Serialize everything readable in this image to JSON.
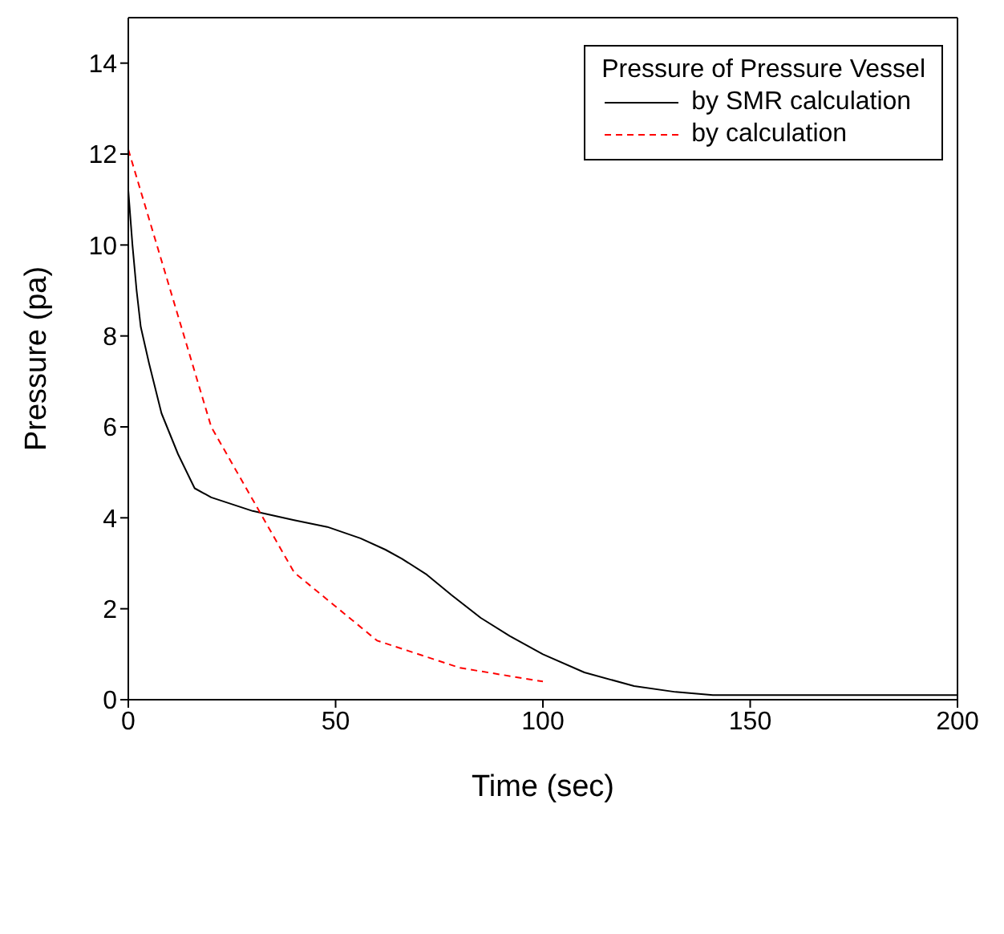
{
  "chart_data": {
    "type": "line",
    "xlabel": "Time (sec)",
    "ylabel": "Pressure (pa)",
    "legend_title": "Pressure of Pressure Vessel",
    "legend": "top right",
    "grid": false,
    "marker": "none",
    "xlim": [
      0,
      200
    ],
    "xticks": [
      0,
      50,
      100,
      150,
      200
    ],
    "ylim": [
      0,
      15
    ],
    "yticks": [
      0,
      2,
      4,
      6,
      8,
      10,
      12,
      14
    ],
    "series": [
      {
        "name": "by SMR calculation",
        "color": "#000000",
        "line_style": "solid",
        "x": [
          0,
          1,
          2,
          3,
          5,
          8,
          12,
          16,
          20,
          30,
          40,
          48,
          56,
          62,
          66,
          72,
          78,
          85,
          92,
          100,
          110,
          122,
          132,
          141,
          160,
          180,
          200
        ],
        "values": [
          11.2,
          10.0,
          9.0,
          8.2,
          7.4,
          6.3,
          5.4,
          4.65,
          4.45,
          4.15,
          3.95,
          3.8,
          3.55,
          3.3,
          3.1,
          2.75,
          2.3,
          1.8,
          1.4,
          1.0,
          0.6,
          0.3,
          0.17,
          0.1,
          0.1,
          0.1,
          0.1
        ]
      },
      {
        "name": "by calculation",
        "color": "#ff0000",
        "line_style": "dashed",
        "x": [
          0,
          20,
          40,
          60,
          80,
          100
        ],
        "values": [
          12.1,
          6.0,
          2.8,
          1.3,
          0.7,
          0.4
        ]
      }
    ]
  }
}
